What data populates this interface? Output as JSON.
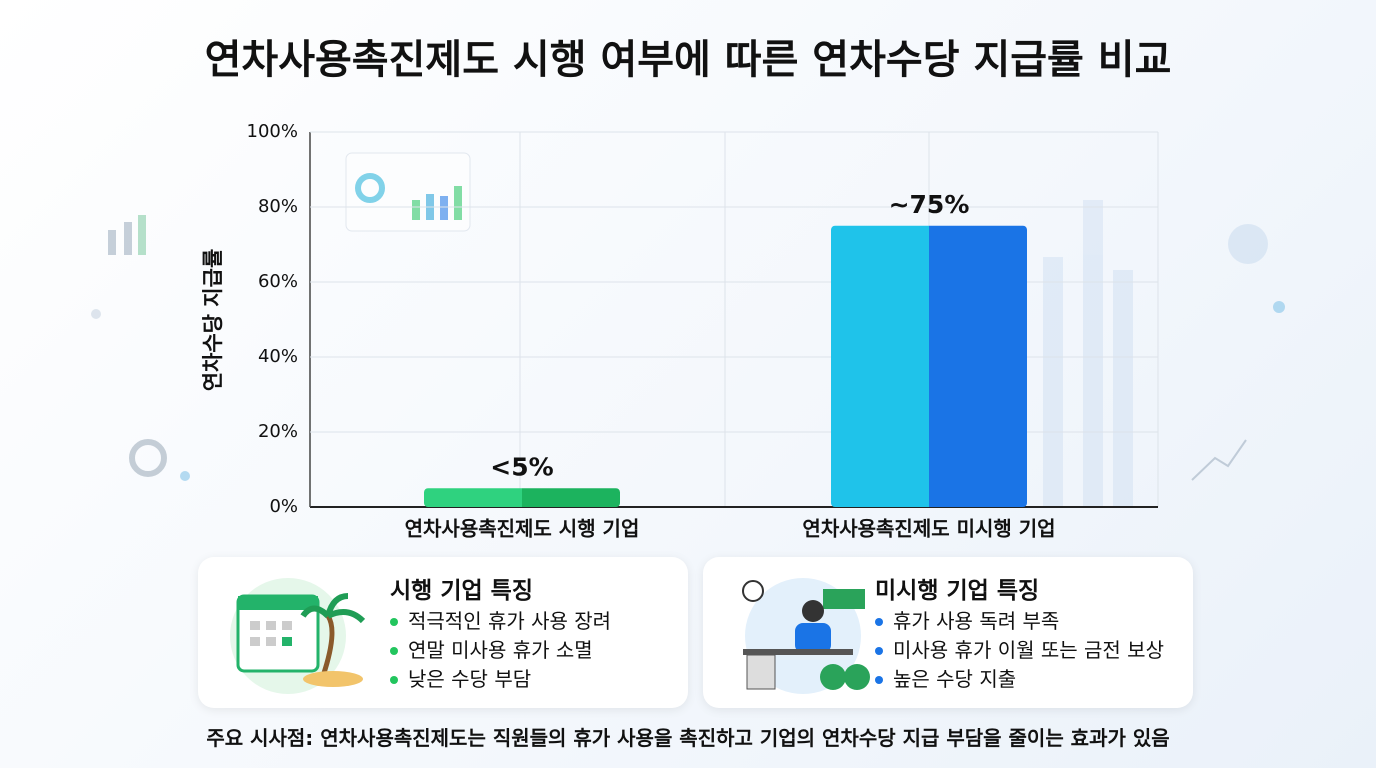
{
  "chart_data": {
    "type": "bar",
    "title": "연차사용촉진제도 시행 여부에 따른 연차수당 지급률 비교",
    "y_label": "연차수당 지급률",
    "categories": [
      "연차사용촉진제도 시행 기업",
      "연차사용촉진제도 미시행 기업"
    ],
    "values": [
      5,
      75
    ],
    "value_labels": [
      "<5%",
      "~75%"
    ],
    "colors": [
      [
        "#2fd27f",
        "#1cb35e"
      ],
      [
        "#1fc3ea",
        "#1a74e6"
      ]
    ],
    "ylim": [
      0,
      100
    ],
    "yticks": [
      {
        "value": 0,
        "label": "0%"
      },
      {
        "value": 20,
        "label": "20%"
      },
      {
        "value": 40,
        "label": "40%"
      },
      {
        "value": 60,
        "label": "60%"
      },
      {
        "value": 80,
        "label": "80%"
      },
      {
        "value": 100,
        "label": "100%"
      }
    ],
    "grid": true
  },
  "cards": [
    {
      "title": "시행 기업 특징",
      "bullet_color": "#22c55e",
      "items": [
        "적극적인 휴가 사용 장려",
        "연말 미사용 휴가 소멸",
        "낮은 수당 부담"
      ]
    },
    {
      "title": "미시행 기업 특징",
      "bullet_color": "#1a74e6",
      "items": [
        "휴가 사용 독려 부족",
        "미사용 휴가 이월 또는 금전 보상",
        "높은 수당 지출"
      ]
    }
  ],
  "note": "주요 시사점: 연차사용촉진제도는 직원들의 휴가 사용을 촉진하고 기업의 연차수당 지급 부담을 줄이는 효과가 있음"
}
